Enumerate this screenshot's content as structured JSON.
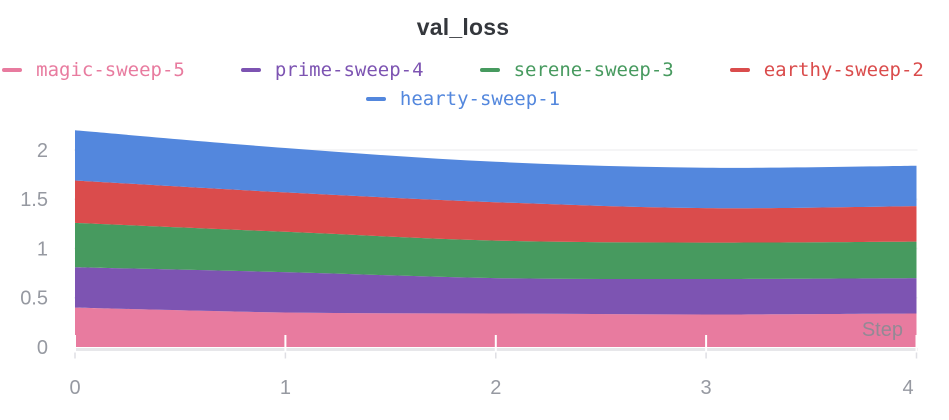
{
  "chart_data": {
    "type": "area",
    "stacked": true,
    "title": "val_loss",
    "xlabel": "Step",
    "x": [
      0,
      1,
      2,
      3,
      4
    ],
    "x_tick_labels": [
      "0",
      "1",
      "2",
      "3",
      "4"
    ],
    "y_ticks": [
      0,
      0.5,
      1,
      1.5,
      2
    ],
    "y_tick_labels": [
      "0",
      "0.5",
      "1",
      "1.5",
      "2"
    ],
    "ylim": [
      0,
      2.35
    ],
    "grid": "horizontal",
    "legend_position": "top",
    "series": [
      {
        "name": "magic-sweep-5",
        "color": "#E87B9F",
        "values": [
          0.4,
          0.35,
          0.34,
          0.33,
          0.34
        ]
      },
      {
        "name": "prime-sweep-4",
        "color": "#7D54B2",
        "values": [
          0.41,
          0.41,
          0.36,
          0.36,
          0.36
        ]
      },
      {
        "name": "serene-sweep-3",
        "color": "#479A5F",
        "values": [
          0.45,
          0.41,
          0.38,
          0.37,
          0.37
        ]
      },
      {
        "name": "earthy-sweep-2",
        "color": "#DA4C4C",
        "values": [
          0.43,
          0.4,
          0.39,
          0.35,
          0.36
        ]
      },
      {
        "name": "hearty-sweep-1",
        "color": "#5387DD",
        "values": [
          0.51,
          0.45,
          0.41,
          0.41,
          0.41
        ]
      }
    ],
    "stack_totals": [
      2.2,
      2.02,
      1.88,
      1.82,
      1.84
    ]
  },
  "colors": {
    "title": "#34373c",
    "tick_label": "#9699a1",
    "step_label": "#8a8b94",
    "axis_line": "#e7e7ea",
    "grid_line": "#f2f2f4",
    "tick_mark": "#ffffff",
    "tick_stub": "#dfdfe4",
    "background": "#ffffff"
  }
}
